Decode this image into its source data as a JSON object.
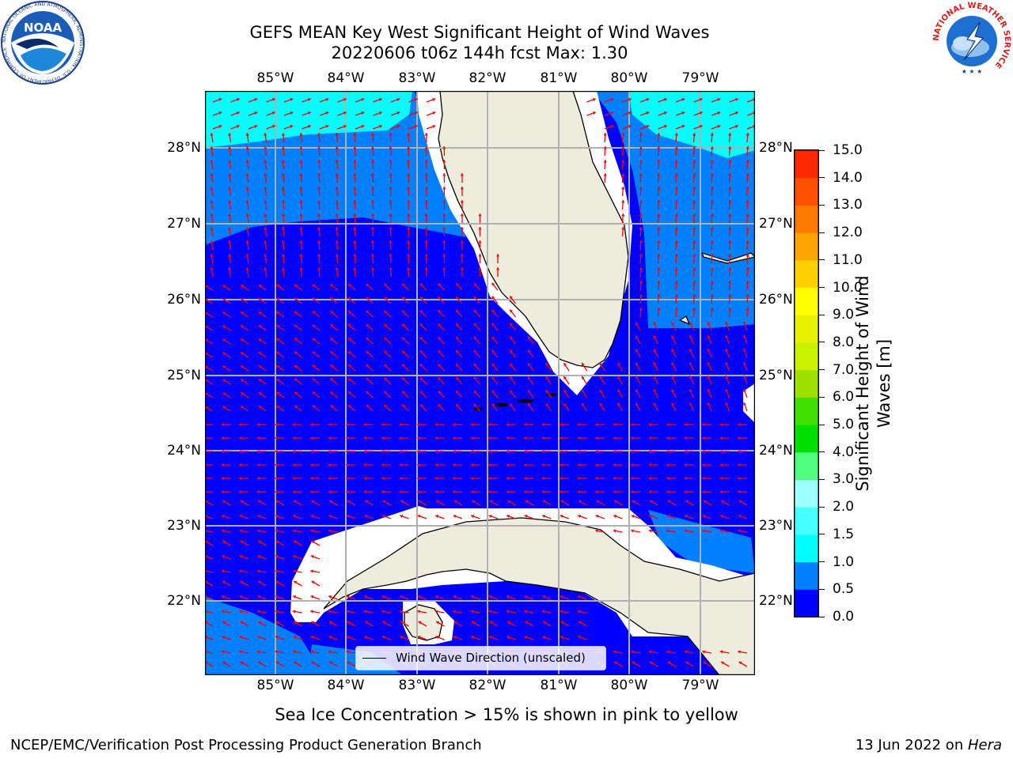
{
  "title": {
    "line1": "GEFS MEAN Key West Significant Height of Wind Waves",
    "line2": "20220606 t06z 144h fcst   Max: 1.30"
  },
  "map": {
    "lon_labels": [
      "85°W",
      "84°W",
      "83°W",
      "82°W",
      "81°W",
      "80°W",
      "79°W"
    ],
    "lat_labels": [
      "28°N",
      "27°N",
      "26°N",
      "25°N",
      "24°N",
      "23°N",
      "22°N"
    ],
    "legend_label": "Wind Wave Direction (unscaled)",
    "colors": {
      "land": "#eeecdc",
      "coast": "#000000",
      "gridline": "#b0b0b0",
      "arrow": "#ff0000"
    }
  },
  "colorbar": {
    "label": "Significant Height of Wind Waves [m]",
    "label_lines": [
      "Significant Height of Wind",
      "Waves [m]"
    ],
    "tick_labels": [
      "0.0",
      "0.5",
      "1.0",
      "1.5",
      "2.0",
      "3.0",
      "4.0",
      "5.0",
      "6.0",
      "7.0",
      "8.0",
      "9.0",
      "10.0",
      "11.0",
      "12.0",
      "13.0",
      "14.0",
      "15.0"
    ],
    "colors": [
      "#0000ff",
      "#0080ff",
      "#00ffff",
      "#48ffff",
      "#a0ffff",
      "#50ff80",
      "#00e000",
      "#40e000",
      "#a0e000",
      "#c8f000",
      "#e6f000",
      "#ffff00",
      "#ffd000",
      "#ffa500",
      "#ff7800",
      "#ff5000",
      "#ff2800",
      "#ff0000"
    ]
  },
  "footer": {
    "sea_ice_note": "Sea Ice Concentration > 15% is shown in pink to yellow",
    "branch": "NCEP/EMC/Verification Post Processing Product Generation Branch",
    "date": "13 Jun 2022 on ",
    "machine": "Hera"
  },
  "logos": {
    "noaa_text": "NOAA",
    "noaa_ring": "NATIONAL OCEANIC AND ATMOSPHERIC ADMINISTRATION · U.S. DEPARTMENT OF COMMERCE",
    "nws_ring": "NATIONAL WEATHER SERVICE"
  }
}
